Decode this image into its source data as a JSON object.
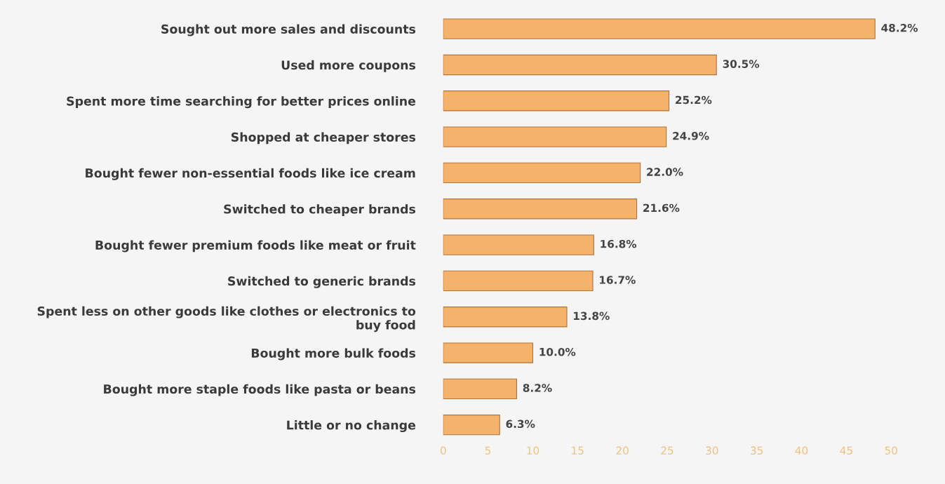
{
  "chart_data": {
    "type": "bar",
    "orientation": "horizontal",
    "categories": [
      "Sought out more sales and discounts",
      "Used more coupons",
      "Spent more time searching for better prices online",
      "Shopped at cheaper stores",
      "Bought fewer non-essential foods like ice cream",
      "Switched to cheaper brands",
      "Bought fewer premium foods like meat or fruit",
      "Switched to generic brands",
      "Spent less on other goods like clothes or electronics to\nbuy food",
      "Bought more bulk foods",
      "Bought more staple foods like pasta or beans",
      "Little or no change"
    ],
    "values": [
      48.2,
      30.5,
      25.2,
      24.9,
      22.0,
      21.6,
      16.8,
      16.7,
      13.8,
      10.0,
      8.2,
      6.3
    ],
    "value_labels": [
      "48.2%",
      "30.5%",
      "25.2%",
      "24.9%",
      "22.0%",
      "21.6%",
      "16.8%",
      "16.7%",
      "13.8%",
      "10.0%",
      "8.2%",
      "6.3%"
    ],
    "color": "#f4b26b",
    "xlim": [
      0,
      50
    ],
    "xticks": [
      0,
      5,
      10,
      15,
      20,
      25,
      30,
      35,
      40,
      45,
      50
    ],
    "grid": false,
    "legend": false
  }
}
